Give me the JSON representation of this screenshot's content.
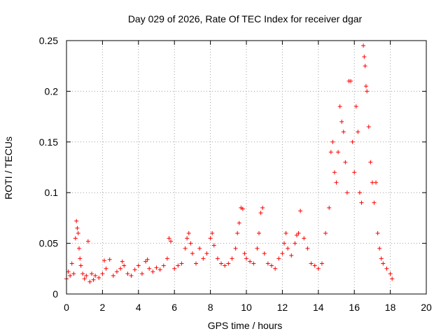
{
  "chart_data": {
    "type": "scatter",
    "title": "Day 029 of 2026, Rate Of TEC Index for receiver dgar",
    "xlabel": "GPS time / hours",
    "ylabel": "ROTI / TECUs",
    "xlim": [
      0,
      20
    ],
    "ylim": [
      0,
      0.25
    ],
    "x_ticks": [
      0,
      2,
      4,
      6,
      8,
      10,
      12,
      14,
      16,
      18,
      20
    ],
    "x_tick_labels": [
      "0",
      "2",
      "4",
      "6",
      "8",
      "10",
      "12",
      "14",
      "16",
      "18",
      "20"
    ],
    "y_ticks": [
      0,
      0.05,
      0.1,
      0.15,
      0.2,
      0.25
    ],
    "y_tick_labels": [
      "0",
      "0.05",
      "0.1",
      "0.15",
      "0.2",
      "0.25"
    ],
    "grid": true,
    "marker": "plus",
    "marker_color": "#ff0000",
    "series": [
      {
        "name": "ROTI",
        "points": [
          [
            0.0,
            0.015
          ],
          [
            0.1,
            0.022
          ],
          [
            0.2,
            0.018
          ],
          [
            0.3,
            0.03
          ],
          [
            0.4,
            0.02
          ],
          [
            0.5,
            0.055
          ],
          [
            0.55,
            0.072
          ],
          [
            0.6,
            0.065
          ],
          [
            0.65,
            0.06
          ],
          [
            0.7,
            0.045
          ],
          [
            0.75,
            0.035
          ],
          [
            0.8,
            0.028
          ],
          [
            0.9,
            0.02
          ],
          [
            1.0,
            0.015
          ],
          [
            1.1,
            0.018
          ],
          [
            1.2,
            0.052
          ],
          [
            1.3,
            0.012
          ],
          [
            1.4,
            0.02
          ],
          [
            1.5,
            0.014
          ],
          [
            1.6,
            0.018
          ],
          [
            1.8,
            0.016
          ],
          [
            2.0,
            0.02
          ],
          [
            2.1,
            0.033
          ],
          [
            2.2,
            0.025
          ],
          [
            2.4,
            0.034
          ],
          [
            2.6,
            0.018
          ],
          [
            2.8,
            0.022
          ],
          [
            3.0,
            0.025
          ],
          [
            3.1,
            0.032
          ],
          [
            3.2,
            0.028
          ],
          [
            3.4,
            0.02
          ],
          [
            3.6,
            0.018
          ],
          [
            3.8,
            0.024
          ],
          [
            4.0,
            0.028
          ],
          [
            4.2,
            0.02
          ],
          [
            4.4,
            0.032
          ],
          [
            4.5,
            0.034
          ],
          [
            4.6,
            0.025
          ],
          [
            4.8,
            0.022
          ],
          [
            5.0,
            0.026
          ],
          [
            5.2,
            0.024
          ],
          [
            5.4,
            0.028
          ],
          [
            5.6,
            0.035
          ],
          [
            5.7,
            0.055
          ],
          [
            5.8,
            0.052
          ],
          [
            6.0,
            0.025
          ],
          [
            6.2,
            0.028
          ],
          [
            6.4,
            0.03
          ],
          [
            6.6,
            0.045
          ],
          [
            6.7,
            0.055
          ],
          [
            6.8,
            0.06
          ],
          [
            6.9,
            0.05
          ],
          [
            7.0,
            0.04
          ],
          [
            7.2,
            0.03
          ],
          [
            7.4,
            0.045
          ],
          [
            7.6,
            0.035
          ],
          [
            7.8,
            0.04
          ],
          [
            8.0,
            0.055
          ],
          [
            8.1,
            0.06
          ],
          [
            8.2,
            0.048
          ],
          [
            8.4,
            0.035
          ],
          [
            8.6,
            0.03
          ],
          [
            8.8,
            0.028
          ],
          [
            9.0,
            0.03
          ],
          [
            9.2,
            0.035
          ],
          [
            9.4,
            0.045
          ],
          [
            9.5,
            0.06
          ],
          [
            9.6,
            0.07
          ],
          [
            9.7,
            0.085
          ],
          [
            9.8,
            0.084
          ],
          [
            9.9,
            0.04
          ],
          [
            10.0,
            0.035
          ],
          [
            10.2,
            0.032
          ],
          [
            10.4,
            0.03
          ],
          [
            10.6,
            0.045
          ],
          [
            10.7,
            0.06
          ],
          [
            10.8,
            0.08
          ],
          [
            10.9,
            0.085
          ],
          [
            11.0,
            0.04
          ],
          [
            11.2,
            0.03
          ],
          [
            11.4,
            0.028
          ],
          [
            11.6,
            0.025
          ],
          [
            11.8,
            0.035
          ],
          [
            12.0,
            0.04
          ],
          [
            12.1,
            0.05
          ],
          [
            12.2,
            0.06
          ],
          [
            12.3,
            0.045
          ],
          [
            12.5,
            0.038
          ],
          [
            12.7,
            0.05
          ],
          [
            12.8,
            0.058
          ],
          [
            12.9,
            0.06
          ],
          [
            13.0,
            0.082
          ],
          [
            13.2,
            0.055
          ],
          [
            13.4,
            0.045
          ],
          [
            13.6,
            0.03
          ],
          [
            13.8,
            0.028
          ],
          [
            14.0,
            0.025
          ],
          [
            14.2,
            0.03
          ],
          [
            14.4,
            0.06
          ],
          [
            14.6,
            0.085
          ],
          [
            14.7,
            0.14
          ],
          [
            14.8,
            0.15
          ],
          [
            14.9,
            0.12
          ],
          [
            15.0,
            0.11
          ],
          [
            15.1,
            0.14
          ],
          [
            15.2,
            0.185
          ],
          [
            15.3,
            0.17
          ],
          [
            15.4,
            0.16
          ],
          [
            15.5,
            0.13
          ],
          [
            15.6,
            0.1
          ],
          [
            15.7,
            0.21
          ],
          [
            15.8,
            0.21
          ],
          [
            15.9,
            0.15
          ],
          [
            16.0,
            0.12
          ],
          [
            16.1,
            0.185
          ],
          [
            16.2,
            0.16
          ],
          [
            16.3,
            0.1
          ],
          [
            16.4,
            0.09
          ],
          [
            16.5,
            0.245
          ],
          [
            16.55,
            0.234
          ],
          [
            16.6,
            0.225
          ],
          [
            16.65,
            0.205
          ],
          [
            16.7,
            0.2
          ],
          [
            16.8,
            0.165
          ],
          [
            16.9,
            0.13
          ],
          [
            17.0,
            0.11
          ],
          [
            17.1,
            0.09
          ],
          [
            17.2,
            0.11
          ],
          [
            17.3,
            0.06
          ],
          [
            17.4,
            0.045
          ],
          [
            17.5,
            0.035
          ],
          [
            17.6,
            0.03
          ],
          [
            17.8,
            0.025
          ],
          [
            18.0,
            0.02
          ],
          [
            18.1,
            0.015
          ]
        ]
      }
    ]
  }
}
